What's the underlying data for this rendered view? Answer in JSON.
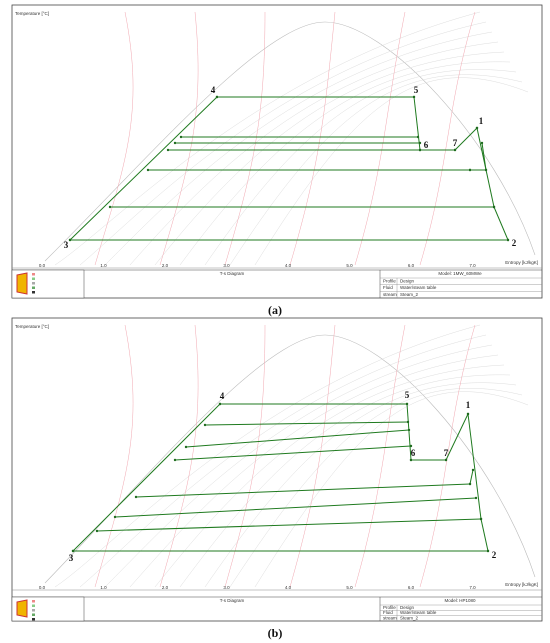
{
  "panels": [
    {
      "caption": "(a)",
      "y_axis_label": "Temperature [°C]",
      "x_axis_label": "Entropy [kJ/kgK]",
      "x_ticks": [
        "0.0",
        "1.0",
        "2.0",
        "3.0",
        "4.0",
        "5.0",
        "6.0",
        "7.0"
      ],
      "diagram_title": "T-s Diagram",
      "model": "Model: 1MW_60MWe",
      "profile_label": "Profile",
      "profile": "Design",
      "fluid_label": "Fluid",
      "fluid": "Water/steam table",
      "stream_label": "stream",
      "stream": "Steam_2",
      "points": [
        "1",
        "2",
        "3",
        "4",
        "5",
        "6",
        "7"
      ]
    },
    {
      "caption": "(b)",
      "y_axis_label": "Temperature [°C]",
      "x_axis_label": "Entropy [kJ/kgK]",
      "x_ticks": [
        "0.0",
        "1.0",
        "2.0",
        "3.0",
        "4.0",
        "5.0",
        "6.0",
        "7.0"
      ],
      "diagram_title": "T-s Diagram",
      "model": "Model: HP1080",
      "profile_label": "Profile",
      "profile": "Design",
      "fluid_label": "Fluid",
      "fluid": "Water/steam table",
      "stream_label": "stream",
      "stream": "Steam_2",
      "points": [
        "1",
        "2",
        "3",
        "4",
        "5",
        "6",
        "7"
      ]
    }
  ]
}
